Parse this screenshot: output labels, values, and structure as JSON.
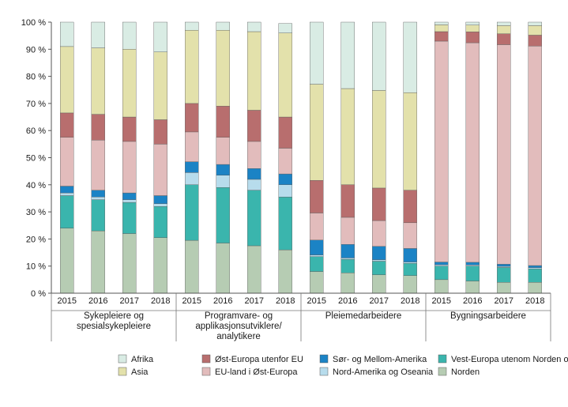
{
  "chart_data": {
    "type": "bar",
    "stacked": true,
    "percent": true,
    "ylim": [
      0,
      100
    ],
    "yticks": [
      0,
      10,
      20,
      30,
      40,
      50,
      60,
      70,
      80,
      90,
      100
    ],
    "ytick_labels": [
      "0 %",
      "10 %",
      "20 %",
      "30 %",
      "40 %",
      "50 %",
      "60 %",
      "70 %",
      "80 %",
      "90 %",
      "100 %"
    ],
    "years": [
      "2015",
      "2016",
      "2017",
      "2018"
    ],
    "groups": [
      {
        "label": [
          "Sykepleiere og",
          "spesialsykepleiere"
        ]
      },
      {
        "label": [
          "Programvare- og",
          "applikasjonsutviklere/",
          "analytikere"
        ]
      },
      {
        "label": [
          "Pleiemedarbeidere"
        ]
      },
      {
        "label": [
          "Bygningsarbeidere"
        ]
      }
    ],
    "categories": [
      "Sykepleiere og spesialsykepleiere 2015",
      "Sykepleiere og spesialsykepleiere 2016",
      "Sykepleiere og spesialsykepleiere 2017",
      "Sykepleiere og spesialsykepleiere 2018",
      "Programvare- og applikasjonsutviklere/analytikere 2015",
      "Programvare- og applikasjonsutviklere/analytikere 2016",
      "Programvare- og applikasjonsutviklere/analytikere 2017",
      "Programvare- og applikasjonsutviklere/analytikere 2018",
      "Pleiemedarbeidere 2015",
      "Pleiemedarbeidere 2016",
      "Pleiemedarbeidere 2017",
      "Pleiemedarbeidere 2018",
      "Bygningsarbeidere 2015",
      "Bygningsarbeidere 2016",
      "Bygningsarbeidere 2017",
      "Bygningsarbeidere 2018"
    ],
    "series": [
      {
        "name": "Norden",
        "color": "#b6ccb3",
        "values": [
          24.0,
          23.0,
          22.0,
          20.5,
          19.5,
          18.5,
          17.5,
          16.0,
          8.0,
          7.5,
          6.8,
          6.5,
          5.0,
          4.5,
          4.0,
          4.0
        ]
      },
      {
        "name": "Vest-Europa utenom Norden og Tyrkia",
        "color": "#3ab5ad",
        "values": [
          12.0,
          11.5,
          11.5,
          11.5,
          20.5,
          20.5,
          20.5,
          19.5,
          5.5,
          5.0,
          5.0,
          4.5,
          5.0,
          5.5,
          5.5,
          5.0
        ]
      },
      {
        "name": "Nord-Amerika og Oseania",
        "color": "#b7dcec",
        "values": [
          1.0,
          1.0,
          1.0,
          1.0,
          4.5,
          4.5,
          4.0,
          4.5,
          0.6,
          0.5,
          0.5,
          0.5,
          0.5,
          0.4,
          0.4,
          0.4
        ]
      },
      {
        "name": "Sør- og Mellom-Amerika",
        "color": "#1b83c5",
        "values": [
          2.5,
          2.5,
          2.5,
          3.0,
          4.0,
          4.0,
          4.0,
          4.0,
          5.5,
          5.0,
          5.0,
          5.0,
          1.0,
          1.0,
          0.8,
          0.8
        ]
      },
      {
        "name": "EU-land i Øst-Europa",
        "color": "#e2bcbc",
        "values": [
          18.0,
          18.5,
          19.0,
          19.0,
          11.0,
          10.0,
          10.0,
          9.5,
          10.0,
          10.0,
          9.5,
          9.5,
          81.5,
          81.0,
          81.0,
          81.0
        ]
      },
      {
        "name": "Øst-Europa utenfor EU",
        "color": "#b86e6e",
        "values": [
          9.0,
          9.5,
          9.0,
          9.0,
          10.5,
          11.5,
          11.5,
          11.5,
          12.0,
          12.0,
          12.0,
          12.0,
          3.5,
          4.0,
          4.0,
          4.0
        ]
      },
      {
        "name": "Asia",
        "color": "#e3e1ab",
        "values": [
          24.5,
          24.5,
          25.0,
          25.0,
          27.0,
          28.0,
          29.0,
          31.0,
          35.5,
          35.5,
          36.0,
          36.0,
          2.5,
          2.5,
          3.0,
          3.5
        ]
      },
      {
        "name": "Afrika",
        "color": "#d9ece4",
        "values": [
          9.0,
          9.5,
          10.0,
          11.0,
          3.0,
          3.0,
          3.5,
          3.5,
          22.9,
          24.5,
          25.2,
          26.0,
          1.0,
          1.1,
          1.3,
          1.3
        ]
      }
    ],
    "legend": {
      "placement": "bottom",
      "columns": [
        [
          "Afrika",
          "Asia"
        ],
        [
          "Øst-Europa utenfor EU",
          "EU-land i Øst-Europa"
        ],
        [
          "Sør- og Mellom-Amerika",
          "Nord-Amerika og Oseania"
        ],
        [
          "Vest-Europa utenom Norden og Tyrkia",
          "Norden"
        ]
      ]
    },
    "grid": false
  }
}
